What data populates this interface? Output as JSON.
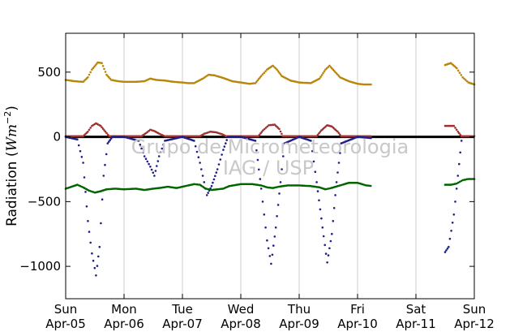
{
  "chart_data": {
    "type": "scatter",
    "title": "",
    "xlabel": "",
    "ylabel": "Radiation (Wm^-2)",
    "ylabel_prefix": "Radiation (",
    "ylabel_unit": "Wm",
    "ylabel_exp": "−2",
    "ylabel_suffix": ")",
    "ylim": [
      -1250,
      800
    ],
    "yticks": [
      {
        "value": 500,
        "label": "500"
      },
      {
        "value": 0,
        "label": "0"
      },
      {
        "value": -500,
        "label": "−500"
      },
      {
        "value": -1000,
        "label": "−1000"
      }
    ],
    "xlim": [
      0,
      7
    ],
    "xticks": [
      {
        "value": 0,
        "day": "Sun",
        "date": "Apr-05"
      },
      {
        "value": 1,
        "day": "Mon",
        "date": "Apr-06"
      },
      {
        "value": 2,
        "day": "Tue",
        "date": "Apr-07"
      },
      {
        "value": 3,
        "day": "Wed",
        "date": "Apr-08"
      },
      {
        "value": 4,
        "day": "Thu",
        "date": "Apr-09"
      },
      {
        "value": 5,
        "day": "Fri",
        "date": "Apr-10"
      },
      {
        "value": 6,
        "day": "Sat",
        "date": "Apr-11"
      },
      {
        "value": 7,
        "day": "Sun",
        "date": "Apr-12"
      }
    ],
    "grid": "vertical",
    "zero_line": true,
    "data_gap": [
      5.25,
      6.5
    ],
    "series": [
      {
        "color": "#b8860b",
        "style": "dots",
        "points": [
          [
            0,
            440
          ],
          [
            0.15,
            430
          ],
          [
            0.3,
            425
          ],
          [
            0.38,
            460
          ],
          [
            0.45,
            520
          ],
          [
            0.55,
            575
          ],
          [
            0.62,
            570
          ],
          [
            0.7,
            480
          ],
          [
            0.78,
            440
          ],
          [
            0.9,
            430
          ],
          [
            1.0,
            425
          ],
          [
            1.2,
            425
          ],
          [
            1.35,
            430
          ],
          [
            1.45,
            450
          ],
          [
            1.55,
            440
          ],
          [
            1.7,
            435
          ],
          [
            1.85,
            425
          ],
          [
            2.0,
            420
          ],
          [
            2.1,
            415
          ],
          [
            2.2,
            415
          ],
          [
            2.35,
            450
          ],
          [
            2.45,
            480
          ],
          [
            2.55,
            475
          ],
          [
            2.7,
            455
          ],
          [
            2.85,
            430
          ],
          [
            3.0,
            420
          ],
          [
            3.15,
            410
          ],
          [
            3.25,
            415
          ],
          [
            3.35,
            470
          ],
          [
            3.45,
            520
          ],
          [
            3.55,
            550
          ],
          [
            3.62,
            520
          ],
          [
            3.7,
            470
          ],
          [
            3.85,
            435
          ],
          [
            4.0,
            420
          ],
          [
            4.2,
            415
          ],
          [
            4.35,
            450
          ],
          [
            4.45,
            520
          ],
          [
            4.52,
            550
          ],
          [
            4.6,
            510
          ],
          [
            4.7,
            460
          ],
          [
            4.85,
            430
          ],
          [
            5.0,
            410
          ],
          [
            5.1,
            405
          ],
          [
            5.25,
            405
          ],
          [
            6.5,
            555
          ],
          [
            6.6,
            570
          ],
          [
            6.7,
            530
          ],
          [
            6.8,
            460
          ],
          [
            6.9,
            420
          ],
          [
            7.0,
            405
          ]
        ]
      },
      {
        "color": "#a03030",
        "style": "dots",
        "points": [
          [
            0,
            5
          ],
          [
            0.3,
            5
          ],
          [
            0.38,
            40
          ],
          [
            0.45,
            85
          ],
          [
            0.52,
            105
          ],
          [
            0.6,
            85
          ],
          [
            0.68,
            40
          ],
          [
            0.75,
            5
          ],
          [
            1.0,
            5
          ],
          [
            1.3,
            5
          ],
          [
            1.38,
            30
          ],
          [
            1.45,
            55
          ],
          [
            1.52,
            45
          ],
          [
            1.6,
            25
          ],
          [
            1.7,
            5
          ],
          [
            2.0,
            5
          ],
          [
            2.3,
            5
          ],
          [
            2.38,
            25
          ],
          [
            2.48,
            40
          ],
          [
            2.58,
            35
          ],
          [
            2.68,
            20
          ],
          [
            2.75,
            5
          ],
          [
            3.0,
            5
          ],
          [
            3.3,
            5
          ],
          [
            3.38,
            50
          ],
          [
            3.48,
            90
          ],
          [
            3.58,
            95
          ],
          [
            3.66,
            60
          ],
          [
            3.72,
            5
          ],
          [
            4.0,
            5
          ],
          [
            4.3,
            5
          ],
          [
            4.38,
            50
          ],
          [
            4.48,
            90
          ],
          [
            4.56,
            80
          ],
          [
            4.66,
            40
          ],
          [
            4.72,
            5
          ],
          [
            5.0,
            5
          ],
          [
            5.25,
            5
          ],
          [
            6.5,
            85
          ],
          [
            6.65,
            85
          ],
          [
            6.72,
            40
          ],
          [
            6.78,
            5
          ],
          [
            7.0,
            5
          ]
        ]
      },
      {
        "color": "#1e1e8c",
        "style": "dots",
        "points": [
          [
            0,
            0
          ],
          [
            0.2,
            -20
          ],
          [
            0.3,
            -200
          ],
          [
            0.38,
            -650
          ],
          [
            0.45,
            -900
          ],
          [
            0.52,
            -1070
          ],
          [
            0.58,
            -850
          ],
          [
            0.65,
            -300
          ],
          [
            0.72,
            -50
          ],
          [
            0.8,
            0
          ],
          [
            1.0,
            0
          ],
          [
            1.25,
            -30
          ],
          [
            1.35,
            -150
          ],
          [
            1.45,
            -230
          ],
          [
            1.52,
            -300
          ],
          [
            1.6,
            -150
          ],
          [
            1.7,
            -30
          ],
          [
            2.0,
            0
          ],
          [
            2.2,
            -30
          ],
          [
            2.3,
            -200
          ],
          [
            2.42,
            -450
          ],
          [
            2.5,
            -380
          ],
          [
            2.6,
            -250
          ],
          [
            2.7,
            -100
          ],
          [
            2.78,
            0
          ],
          [
            3.0,
            0
          ],
          [
            3.25,
            -30
          ],
          [
            3.35,
            -400
          ],
          [
            3.45,
            -800
          ],
          [
            3.52,
            -980
          ],
          [
            3.6,
            -700
          ],
          [
            3.68,
            -350
          ],
          [
            3.75,
            -50
          ],
          [
            4.0,
            0
          ],
          [
            4.2,
            -30
          ],
          [
            4.3,
            -350
          ],
          [
            4.4,
            -700
          ],
          [
            4.48,
            -970
          ],
          [
            4.56,
            -750
          ],
          [
            4.64,
            -350
          ],
          [
            4.72,
            -50
          ],
          [
            5.0,
            0
          ],
          [
            5.25,
            -10
          ],
          [
            6.5,
            -890
          ],
          [
            6.56,
            -850
          ],
          [
            6.65,
            -600
          ],
          [
            6.72,
            -300
          ],
          [
            6.78,
            -30
          ]
        ]
      },
      {
        "color": "#006400",
        "style": "dots",
        "points": [
          [
            0,
            -400
          ],
          [
            0.1,
            -385
          ],
          [
            0.2,
            -370
          ],
          [
            0.3,
            -390
          ],
          [
            0.4,
            -415
          ],
          [
            0.5,
            -430
          ],
          [
            0.6,
            -420
          ],
          [
            0.7,
            -405
          ],
          [
            0.85,
            -400
          ],
          [
            1.0,
            -405
          ],
          [
            1.2,
            -400
          ],
          [
            1.35,
            -410
          ],
          [
            1.5,
            -400
          ],
          [
            1.6,
            -395
          ],
          [
            1.75,
            -385
          ],
          [
            1.9,
            -395
          ],
          [
            2.0,
            -385
          ],
          [
            2.1,
            -375
          ],
          [
            2.2,
            -365
          ],
          [
            2.3,
            -370
          ],
          [
            2.4,
            -400
          ],
          [
            2.5,
            -410
          ],
          [
            2.6,
            -405
          ],
          [
            2.7,
            -400
          ],
          [
            2.8,
            -380
          ],
          [
            3.0,
            -365
          ],
          [
            3.2,
            -365
          ],
          [
            3.35,
            -375
          ],
          [
            3.45,
            -390
          ],
          [
            3.55,
            -395
          ],
          [
            3.65,
            -385
          ],
          [
            3.8,
            -375
          ],
          [
            4.0,
            -375
          ],
          [
            4.2,
            -380
          ],
          [
            4.35,
            -390
          ],
          [
            4.45,
            -405
          ],
          [
            4.55,
            -395
          ],
          [
            4.7,
            -375
          ],
          [
            4.85,
            -355
          ],
          [
            5.0,
            -355
          ],
          [
            5.15,
            -375
          ],
          [
            5.25,
            -380
          ],
          [
            6.5,
            -370
          ],
          [
            6.6,
            -370
          ],
          [
            6.7,
            -360
          ],
          [
            6.8,
            -335
          ],
          [
            6.9,
            -325
          ],
          [
            7.0,
            -325
          ]
        ]
      }
    ],
    "watermark": [
      "Grupo de Micrometeorologia",
      "IAG / USP"
    ]
  }
}
